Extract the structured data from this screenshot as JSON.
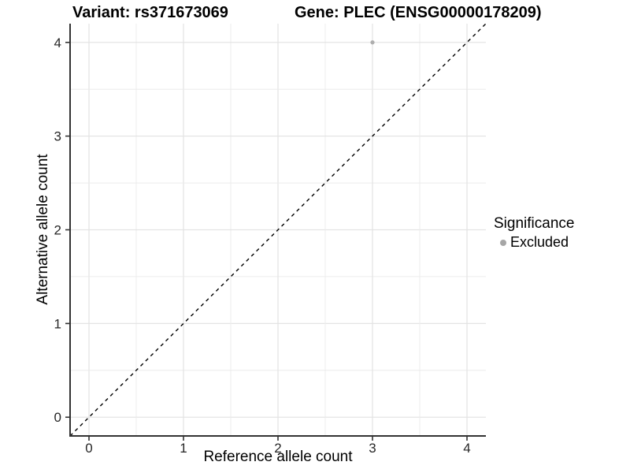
{
  "chart_data": {
    "type": "scatter",
    "title_left": "Variant: rs371673069",
    "title_right": "Gene: PLEC (ENSG00000178209)",
    "xlabel": "Reference allele count",
    "ylabel": "Alternative allele count",
    "xlim": [
      -0.2,
      4.2
    ],
    "ylim": [
      -0.2,
      4.2
    ],
    "x_ticks": [
      0,
      1,
      2,
      3,
      4
    ],
    "y_ticks": [
      0,
      1,
      2,
      3,
      4
    ],
    "grid_step": 0.5,
    "grid_on": true,
    "points": [
      {
        "x": 3,
        "y": 4,
        "series": "Excluded"
      }
    ],
    "reference_line": {
      "type": "identity",
      "from": -0.2,
      "to": 4.2,
      "style": "dashed",
      "color": "#000000"
    },
    "legend": {
      "title": "Significance",
      "position": "right",
      "items": [
        {
          "label": "Excluded",
          "color": "#a6a6a6"
        }
      ]
    },
    "colors": {
      "point": "#aeaeae",
      "grid_major": "#e4e4e4",
      "grid_minor": "#ececec",
      "axis": "#333333",
      "tick_label": "#262626",
      "background": "#ffffff"
    }
  }
}
